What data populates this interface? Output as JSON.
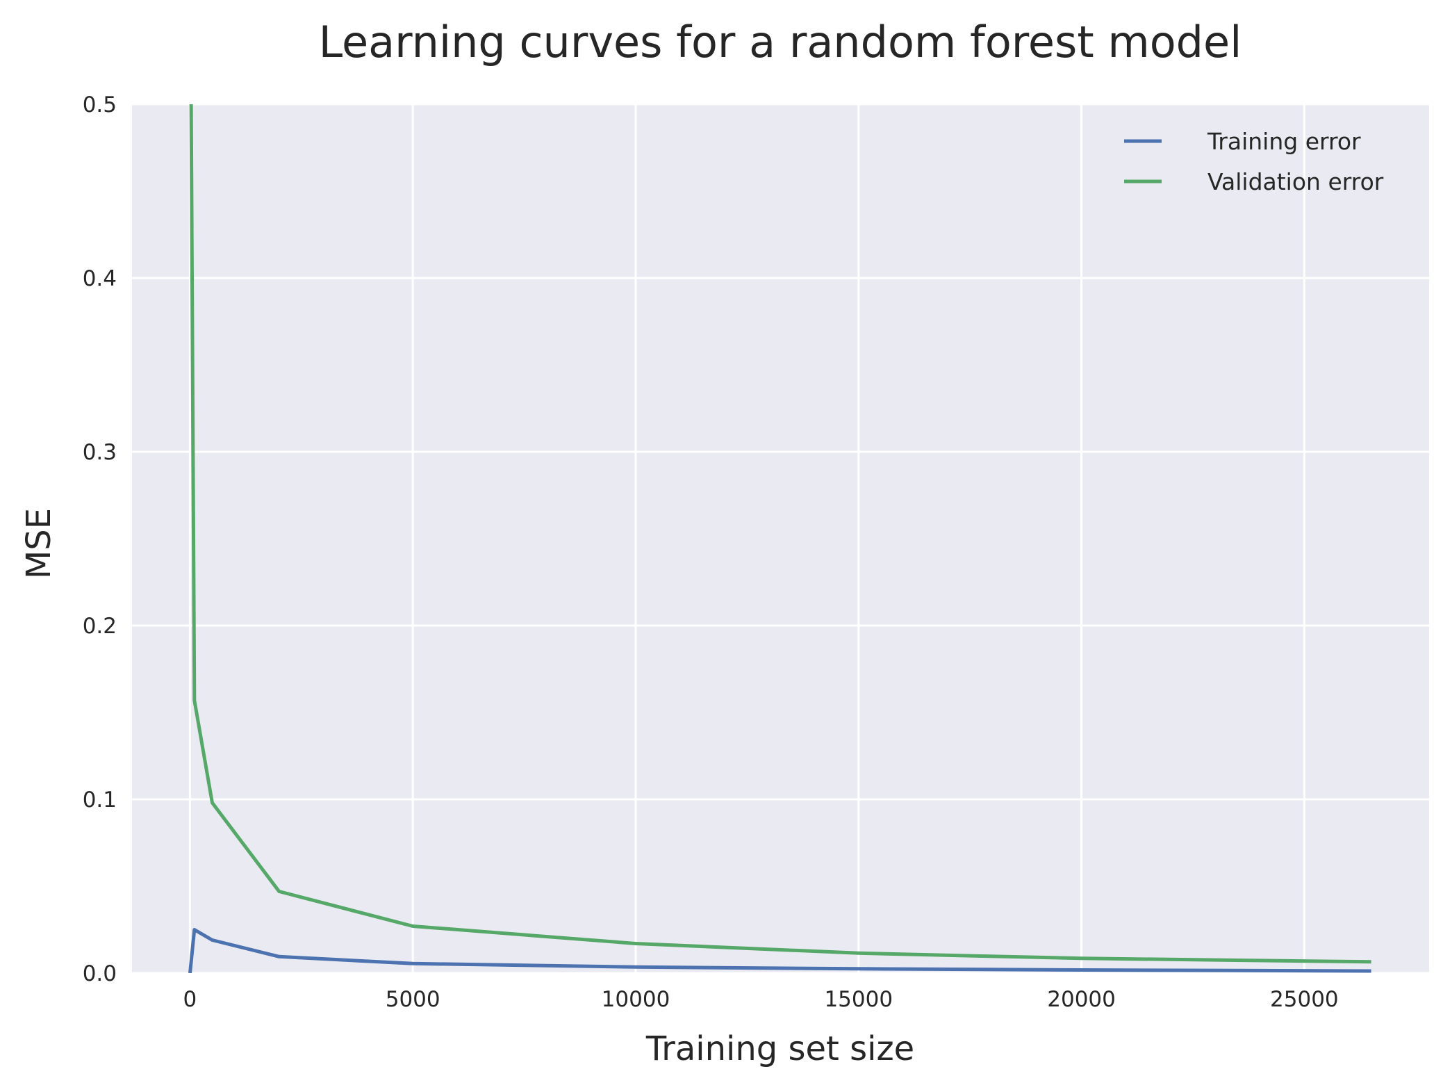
{
  "chart_data": {
    "type": "line",
    "title": "Learning curves for a random forest model",
    "xlabel": "Training set size",
    "ylabel": "MSE",
    "xlim": [
      -1300,
      27800
    ],
    "ylim": [
      0,
      0.5
    ],
    "xticks": [
      0,
      5000,
      10000,
      15000,
      20000,
      25000
    ],
    "xtick_labels": [
      "0",
      "5000",
      "10000",
      "15000",
      "20000",
      "25000"
    ],
    "yticks": [
      0.0,
      0.1,
      0.2,
      0.3,
      0.4,
      0.5
    ],
    "ytick_labels": [
      "0.0",
      "0.1",
      "0.2",
      "0.3",
      "0.4",
      "0.5"
    ],
    "grid": true,
    "legend_position": "top-right",
    "background": "#EAEAF2",
    "gridColor": "#FFFFFF",
    "series": [
      {
        "name": "Training error",
        "color": "#4C72B0",
        "x": [
          1,
          100,
          500,
          2000,
          5000,
          10000,
          15000,
          20000,
          26500
        ],
        "y": [
          0.0,
          0.025,
          0.019,
          0.0095,
          0.0055,
          0.0035,
          0.0025,
          0.0018,
          0.0012
        ]
      },
      {
        "name": "Validation error",
        "color": "#55A868",
        "x": [
          1,
          100,
          500,
          2000,
          5000,
          10000,
          15000,
          20000,
          26500
        ],
        "y": [
          0.62,
          0.157,
          0.098,
          0.047,
          0.027,
          0.017,
          0.0115,
          0.0085,
          0.0065
        ]
      }
    ]
  }
}
